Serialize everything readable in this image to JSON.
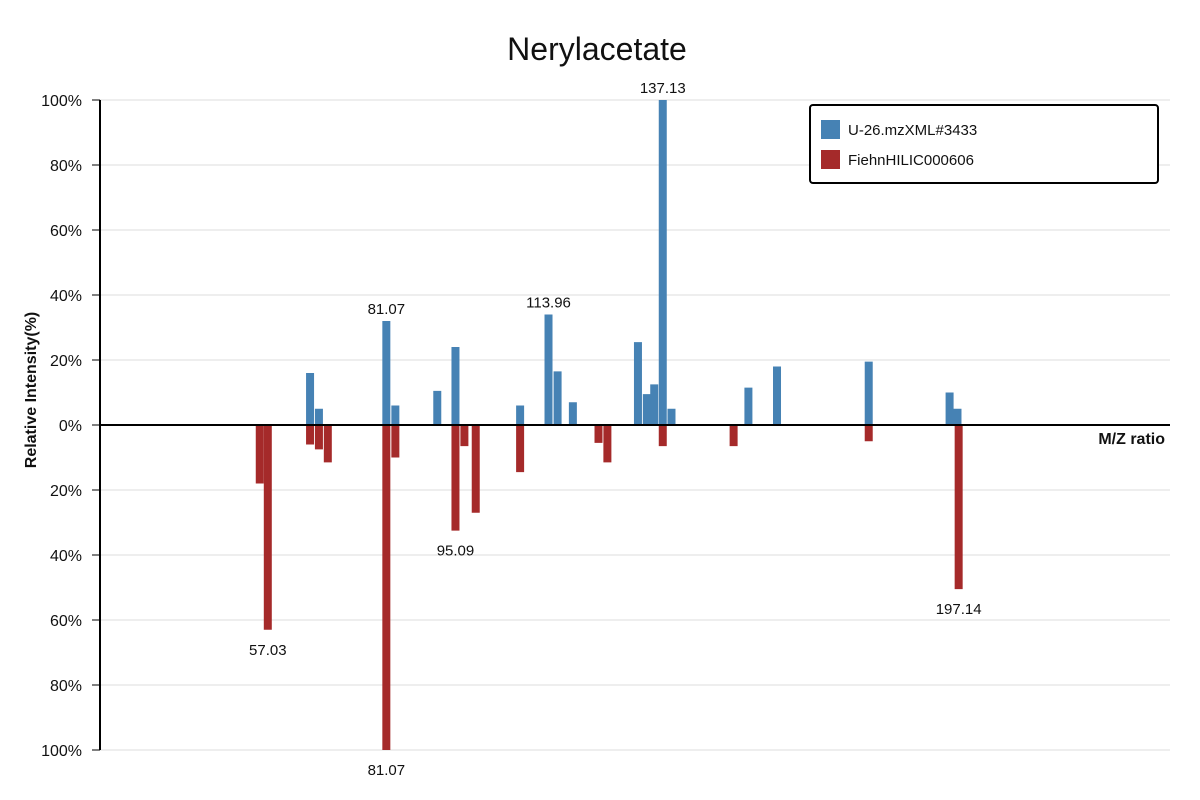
{
  "chart_data": {
    "type": "bar",
    "title": "Nerylacetate",
    "xlabel": "M/Z ratio",
    "ylabel": "Relative Intensity(%)",
    "ylim": [
      -100,
      100
    ],
    "xlim": [
      23,
      240
    ],
    "yticks": [
      {
        "value": 100,
        "label": "100%"
      },
      {
        "value": 80,
        "label": "80%"
      },
      {
        "value": 60,
        "label": "60%"
      },
      {
        "value": 40,
        "label": "40%"
      },
      {
        "value": 20,
        "label": "20%"
      },
      {
        "value": 0,
        "label": "0%"
      },
      {
        "value": -20,
        "label": "20%"
      },
      {
        "value": -40,
        "label": "40%"
      },
      {
        "value": -60,
        "label": "60%"
      },
      {
        "value": -80,
        "label": "80%"
      },
      {
        "value": -100,
        "label": "100%"
      }
    ],
    "grid": true,
    "legend_position": "top-right",
    "series": [
      {
        "name": "U-26.mzXML#3433",
        "color": "#4682b4",
        "direction": "up",
        "points": [
          {
            "mz": 65.6,
            "value": 16
          },
          {
            "mz": 67.4,
            "value": 5
          },
          {
            "mz": 81.07,
            "value": 32,
            "label": "81.07"
          },
          {
            "mz": 82.9,
            "value": 6
          },
          {
            "mz": 91.4,
            "value": 10.5
          },
          {
            "mz": 95.09,
            "value": 24
          },
          {
            "mz": 108.2,
            "value": 6
          },
          {
            "mz": 113.96,
            "value": 34,
            "label": "113.96"
          },
          {
            "mz": 115.8,
            "value": 16.5
          },
          {
            "mz": 118.9,
            "value": 7
          },
          {
            "mz": 132.1,
            "value": 25.5
          },
          {
            "mz": 133.9,
            "value": 9.5
          },
          {
            "mz": 135.4,
            "value": 12.5
          },
          {
            "mz": 137.13,
            "value": 100,
            "label": "137.13"
          },
          {
            "mz": 138.9,
            "value": 5
          },
          {
            "mz": 154.5,
            "value": 11.5
          },
          {
            "mz": 160.3,
            "value": 18
          },
          {
            "mz": 178.9,
            "value": 19.5
          },
          {
            "mz": 195.3,
            "value": 10
          },
          {
            "mz": 196.9,
            "value": 5
          }
        ]
      },
      {
        "name": "FiehnHILIC000606",
        "color": "#a52a2a",
        "direction": "down",
        "points": [
          {
            "mz": 55.4,
            "value": 18
          },
          {
            "mz": 57.03,
            "value": 63,
            "label": "57.03"
          },
          {
            "mz": 65.6,
            "value": 6
          },
          {
            "mz": 67.4,
            "value": 7.5
          },
          {
            "mz": 69.2,
            "value": 11.5
          },
          {
            "mz": 81.07,
            "value": 100,
            "label": "81.07"
          },
          {
            "mz": 82.9,
            "value": 10
          },
          {
            "mz": 95.09,
            "value": 32.5,
            "label": "95.09"
          },
          {
            "mz": 96.9,
            "value": 6.5
          },
          {
            "mz": 99.2,
            "value": 27
          },
          {
            "mz": 108.2,
            "value": 14.5
          },
          {
            "mz": 124.1,
            "value": 5.5
          },
          {
            "mz": 125.9,
            "value": 11.5
          },
          {
            "mz": 137.13,
            "value": 6.5
          },
          {
            "mz": 151.5,
            "value": 6.5
          },
          {
            "mz": 178.9,
            "value": 5
          },
          {
            "mz": 197.14,
            "value": 50.5,
            "label": "197.14"
          }
        ]
      }
    ]
  }
}
